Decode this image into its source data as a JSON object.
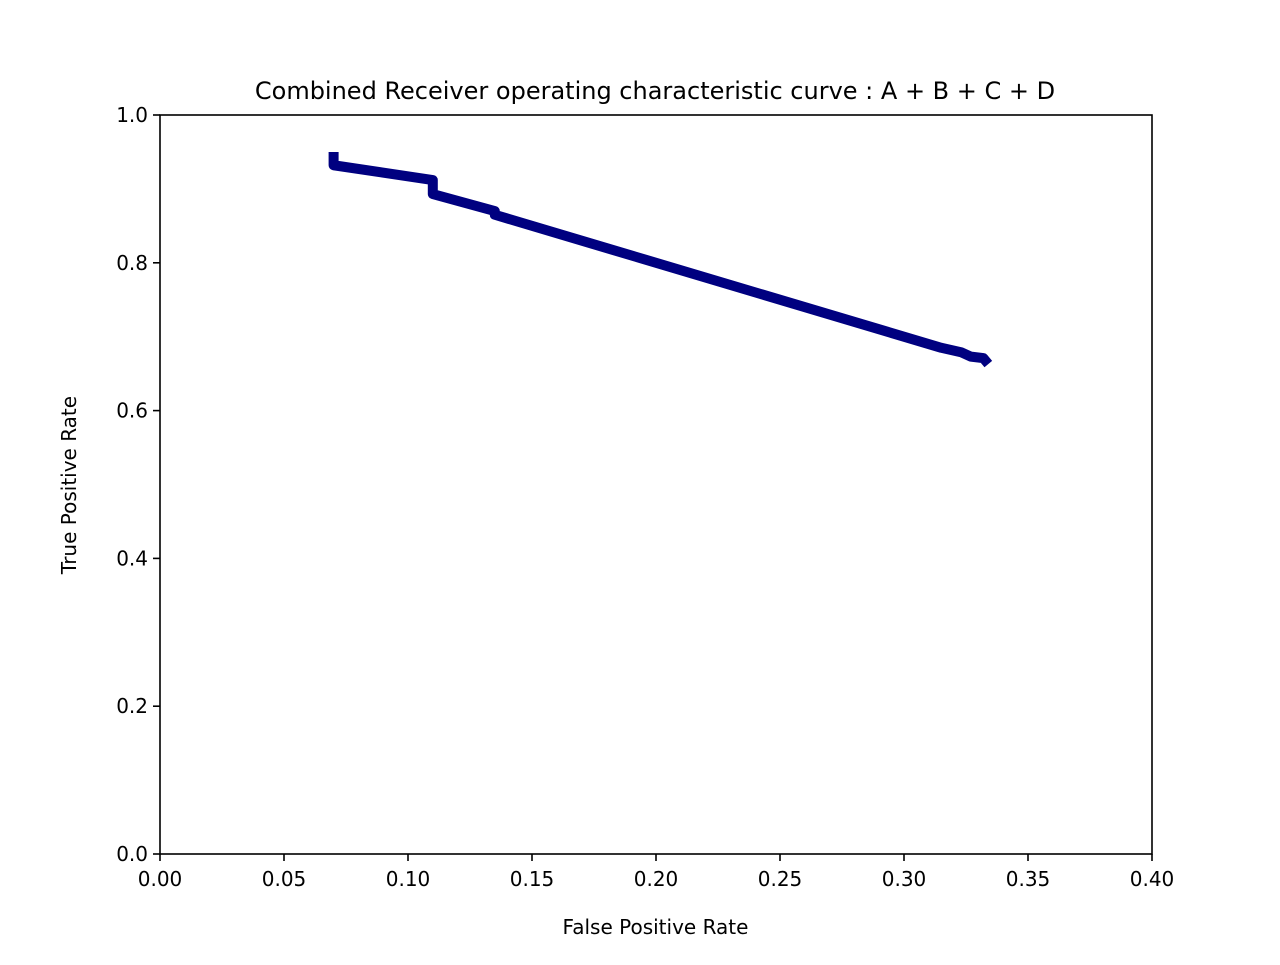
{
  "chart_data": {
    "type": "line",
    "title": "Combined Receiver operating characteristic curve : A + B + C + D",
    "xlabel": "False Positive Rate",
    "ylabel": "True Positive Rate",
    "xlim": [
      0.0,
      0.4
    ],
    "ylim": [
      0.0,
      1.0
    ],
    "xticks": [
      "0.00",
      "0.05",
      "0.10",
      "0.15",
      "0.20",
      "0.25",
      "0.30",
      "0.35",
      "0.40"
    ],
    "yticks": [
      "0.0",
      "0.2",
      "0.4",
      "0.6",
      "0.8",
      "1.0"
    ],
    "grid": false,
    "legend": "none",
    "series": [
      {
        "color": "#000080",
        "x": [
          0.07,
          0.07,
          0.11,
          0.11,
          0.135,
          0.135,
          0.315,
          0.323,
          0.327,
          0.332,
          0.334
        ],
        "y": [
          0.95,
          0.932,
          0.912,
          0.893,
          0.87,
          0.865,
          0.685,
          0.679,
          0.673,
          0.671,
          0.663
        ]
      }
    ]
  }
}
